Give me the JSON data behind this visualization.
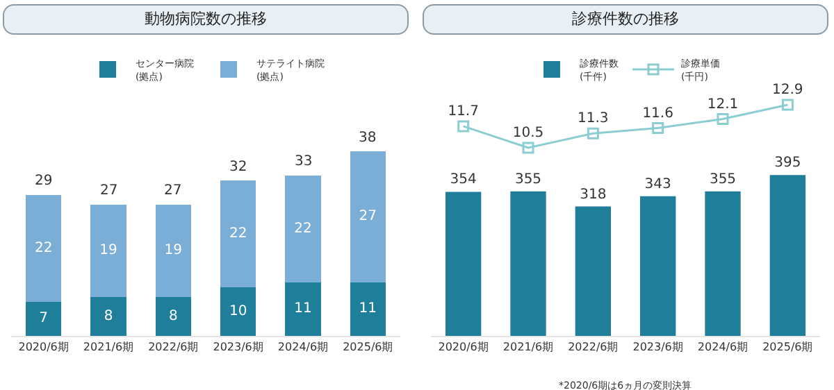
{
  "chart_data": [
    {
      "type": "bar",
      "title": "動物病院数の推移",
      "categories": [
        "2020/6期",
        "2021/6期",
        "2022/6期",
        "2023/6期",
        "2024/6期",
        "2025/6期"
      ],
      "stacked": true,
      "data_labels": true,
      "totals": [
        "29",
        "27",
        "27",
        "32",
        "33",
        "38"
      ],
      "legend": "top",
      "grid": false,
      "tick_labels": "x",
      "series": [
        {
          "name": "センター病院\n(拠点)",
          "color": "#1f7f9b",
          "values": [
            7,
            8,
            8,
            10,
            11,
            11
          ]
        },
        {
          "name": "サテライト病院\n(拠点)",
          "color": "#7aaed6",
          "values": [
            22,
            19,
            19,
            22,
            22,
            27
          ]
        }
      ]
    },
    {
      "type": "bar",
      "title": "診療件数の推移",
      "categories": [
        "2020/6期",
        "2021/6期",
        "2022/6期",
        "2023/6期",
        "2024/6期",
        "2025/6期"
      ],
      "data_labels": true,
      "legend": "top",
      "grid": false,
      "tick_labels": "x",
      "ylim": [
        0,
        590
      ],
      "y2lim": [
        0,
        13.4
      ],
      "annotations": [
        "*2020/6期は6ヵ月の変則決算"
      ],
      "series": [
        {
          "name": "診療件数\n(千件)",
          "color": "#1f7f9b",
          "values": [
            354,
            355,
            318,
            343,
            355,
            395
          ]
        },
        {
          "name": "診療単価\n(千円)",
          "type": "line",
          "axis": "y2",
          "marker": "square",
          "line_style": "solid",
          "color": "#8ccdd2",
          "values": [
            11.7,
            10.5,
            11.3,
            11.6,
            12.1,
            12.9
          ]
        }
      ]
    }
  ]
}
